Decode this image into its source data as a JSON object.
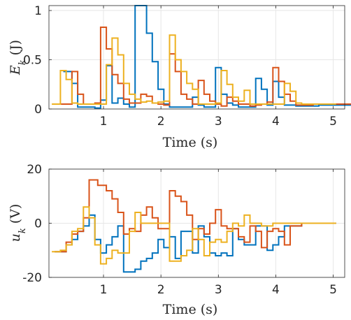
{
  "chart_data": [
    {
      "type": "line",
      "step": "post",
      "xlabel": "Time (s)",
      "ylabel": {
        "symbol": "E",
        "subscript": "k",
        "unit": "(J)"
      },
      "xlim": [
        0.05,
        5.2
      ],
      "ylim": [
        0,
        1.05
      ],
      "xticks": [
        "1",
        "2",
        "3",
        "4",
        "5"
      ],
      "xtick_values": [
        1,
        2,
        3,
        4,
        5
      ],
      "yticks": [
        "0",
        "0.5",
        "1"
      ],
      "ytick_values": [
        0,
        0.5,
        1
      ],
      "grid": true,
      "series": [
        {
          "color": "#0072BD",
          "x": [
            0.3,
            0.45,
            0.55,
            0.65,
            0.85,
            0.95,
            1.05,
            1.15,
            1.25,
            1.35,
            1.45,
            1.55,
            1.75,
            1.85,
            1.95,
            2.05,
            2.15,
            2.3,
            2.45,
            2.55,
            2.65,
            2.75,
            2.85,
            2.95,
            3.05,
            3.15,
            3.25,
            3.35,
            3.45,
            3.55,
            3.65,
            3.75,
            3.85,
            3.95,
            4.05,
            4.15,
            4.25,
            4.35,
            4.45,
            4.55,
            4.65,
            4.75,
            4.85
          ],
          "y": [
            0.38,
            0.26,
            0.02,
            0.02,
            0.01,
            0.09,
            0.44,
            0.06,
            0.11,
            0.05,
            0.02,
            1.05,
            0.77,
            0.48,
            0.2,
            0.05,
            0.02,
            0.02,
            0.02,
            0.12,
            0.04,
            0.02,
            0.02,
            0.42,
            0.15,
            0.06,
            0.04,
            0.02,
            0.02,
            0.02,
            0.31,
            0.2,
            0.04,
            0.28,
            0.12,
            0.04,
            0.04,
            0.03,
            0.03,
            0.03,
            0.03,
            0.04,
            0.04
          ]
        },
        {
          "color": "#D95319",
          "x": [
            0.25,
            0.45,
            0.55,
            0.65,
            0.85,
            0.95,
            1.05,
            1.15,
            1.25,
            1.35,
            1.45,
            1.55,
            1.65,
            1.75,
            1.85,
            1.95,
            2.05,
            2.15,
            2.25,
            2.35,
            2.45,
            2.55,
            2.65,
            2.75,
            2.85,
            2.95,
            3.05,
            3.15,
            3.25,
            3.35,
            3.45,
            3.55,
            3.65,
            3.75,
            3.85,
            3.95,
            4.05,
            4.15,
            4.25,
            4.35,
            4.45,
            4.55,
            4.65,
            4.75,
            4.85,
            4.95
          ],
          "y": [
            0.05,
            0.38,
            0.15,
            0.05,
            0.06,
            0.83,
            0.61,
            0.35,
            0.26,
            0.1,
            0.06,
            0.06,
            0.15,
            0.13,
            0.06,
            0.05,
            0.04,
            0.56,
            0.38,
            0.15,
            0.1,
            0.05,
            0.29,
            0.15,
            0.08,
            0.05,
            0.03,
            0.12,
            0.08,
            0.05,
            0.05,
            0.03,
            0.04,
            0.05,
            0.07,
            0.42,
            0.28,
            0.15,
            0.08,
            0.04,
            0.04,
            0.04,
            0.05,
            0.05,
            0.05,
            0.05
          ]
        },
        {
          "color": "#EDB120",
          "x": [
            0.1,
            0.25,
            0.35,
            0.45,
            0.55,
            0.65,
            0.75,
            0.85,
            0.95,
            1.05,
            1.15,
            1.25,
            1.35,
            1.45,
            1.55,
            1.65,
            1.75,
            1.85,
            1.95,
            2.05,
            2.15,
            2.25,
            2.35,
            2.45,
            2.55,
            2.65,
            2.75,
            2.85,
            2.95,
            3.05,
            3.15,
            3.25,
            3.35,
            3.45,
            3.55,
            3.65,
            3.75,
            3.85,
            3.95,
            4.05,
            4.15,
            4.25,
            4.35,
            4.45,
            4.55
          ],
          "y": [
            0.05,
            0.39,
            0.3,
            0.06,
            0.05,
            0.05,
            0.05,
            0.05,
            0.05,
            0.45,
            0.72,
            0.55,
            0.26,
            0.15,
            0.1,
            0.07,
            0.08,
            0.06,
            0.07,
            0.08,
            0.75,
            0.5,
            0.38,
            0.26,
            0.2,
            0.05,
            0.05,
            0.05,
            0.06,
            0.39,
            0.25,
            0.12,
            0.08,
            0.19,
            0.05,
            0.05,
            0.05,
            0.05,
            0.05,
            0.05,
            0.26,
            0.18,
            0.06,
            0.05,
            0.05
          ]
        }
      ]
    },
    {
      "type": "line",
      "step": "post",
      "xlabel": "Time (s)",
      "ylabel": {
        "symbol": "u",
        "subscript": "k",
        "unit": "(V)"
      },
      "xlim": [
        0.05,
        5.2
      ],
      "ylim": [
        -20,
        20
      ],
      "xticks": [
        "1",
        "2",
        "3",
        "4",
        "5"
      ],
      "xtick_values": [
        1,
        2,
        3,
        4,
        5
      ],
      "yticks": [
        "-20",
        "0",
        "20"
      ],
      "ytick_values": [
        -20,
        0,
        20
      ],
      "grid": true,
      "series": [
        {
          "color": "#0072BD",
          "x": [
            0.15,
            0.25,
            0.35,
            0.45,
            0.55,
            0.65,
            0.75,
            0.85,
            0.95,
            1.05,
            1.15,
            1.25,
            1.35,
            1.55,
            1.65,
            1.75,
            1.85,
            1.95,
            2.05,
            2.15,
            2.25,
            2.35,
            2.45,
            2.55,
            2.65,
            2.75,
            2.85,
            2.95,
            3.05,
            3.15,
            3.25,
            3.35,
            3.45,
            3.55,
            3.65,
            3.75,
            3.85,
            3.95,
            4.05,
            4.15,
            4.25,
            4.35,
            4.45,
            4.55
          ],
          "y": [
            -10.5,
            -10.5,
            -8,
            -6,
            -3,
            -1,
            3,
            -6,
            -11,
            -8,
            -5,
            -1,
            -18,
            -17,
            -14,
            -13,
            -11,
            -6,
            -9,
            -5,
            -13,
            -3,
            -3,
            -11,
            -1,
            -5,
            -11,
            -12,
            -11,
            -12,
            -2,
            -6,
            -8,
            -8,
            -1,
            -1,
            -10,
            -8,
            -5,
            -1,
            -1,
            -1,
            0,
            0
          ]
        },
        {
          "color": "#D95319",
          "x": [
            0.15,
            0.35,
            0.45,
            0.55,
            0.65,
            0.75,
            0.9,
            1.05,
            1.15,
            1.25,
            1.35,
            1.45,
            1.55,
            1.65,
            1.75,
            1.85,
            1.95,
            2.05,
            2.15,
            2.25,
            2.35,
            2.45,
            2.55,
            2.65,
            2.75,
            2.85,
            2.95,
            3.05,
            3.15,
            3.25,
            3.35,
            3.45,
            3.55,
            3.65,
            3.75,
            3.85,
            3.95,
            4.05,
            4.15,
            4.25,
            4.35,
            4.45,
            4.55
          ],
          "y": [
            -10.5,
            -7,
            -4,
            -3,
            2,
            16,
            14,
            12,
            9,
            4,
            -4,
            -2,
            -3,
            3,
            6,
            2,
            -2,
            -2,
            12,
            10,
            8,
            3,
            -6,
            -2,
            -4,
            0,
            5,
            -1,
            -2,
            -2,
            -5,
            -7,
            -1,
            -3,
            -9,
            -3,
            -2,
            -3,
            -8,
            -1,
            -1,
            0,
            0
          ]
        },
        {
          "color": "#EDB120",
          "x": [
            0.1,
            0.25,
            0.35,
            0.45,
            0.55,
            0.65,
            0.75,
            0.85,
            0.95,
            1.05,
            1.15,
            1.25,
            1.35,
            1.45,
            1.55,
            1.65,
            1.75,
            1.85,
            1.95,
            2.05,
            2.15,
            2.25,
            2.35,
            2.45,
            2.55,
            2.65,
            2.75,
            2.85,
            2.95,
            3.05,
            3.15,
            3.25,
            3.35,
            3.45,
            3.55,
            3.65,
            3.75,
            3.85,
            3.95,
            4.05,
            4.15,
            4.25,
            4.35,
            4.45,
            4.55
          ],
          "y": [
            -10.5,
            -10,
            -8,
            -3,
            -2,
            6,
            2,
            -8,
            -15,
            -13,
            -10,
            -11,
            -11,
            -3,
            4,
            0,
            0,
            0,
            0,
            0,
            -14,
            -14,
            -12,
            -10,
            -2,
            -6,
            -12,
            -7,
            -6,
            -7,
            -3,
            0,
            -1,
            3,
            0,
            0,
            -1,
            -1,
            0,
            0,
            0,
            0,
            0,
            0,
            0
          ]
        }
      ]
    }
  ]
}
